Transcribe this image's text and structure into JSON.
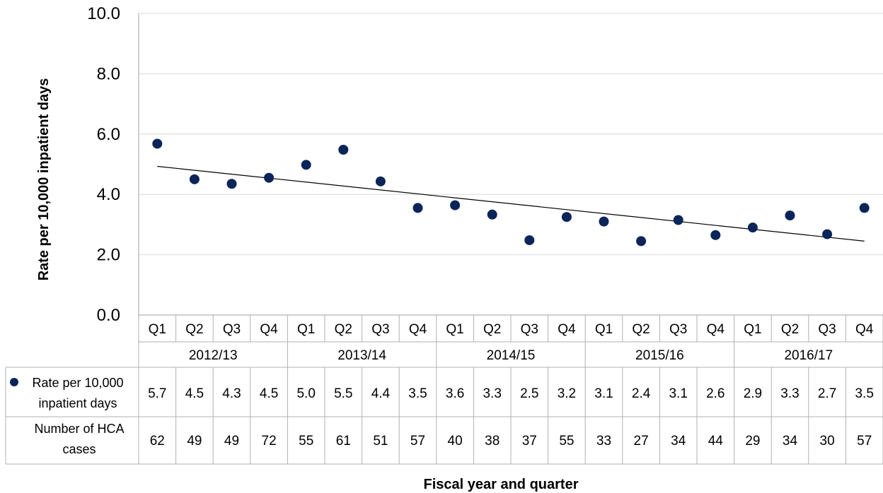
{
  "chart_data": {
    "type": "scatter",
    "ylabel": "Rate per 10,000 inpatient days",
    "xlabel": "Fiscal year and quarter",
    "ylim": [
      0,
      10
    ],
    "yticks": [
      "0.0",
      "2.0",
      "4.0",
      "6.0",
      "8.0",
      "10.0"
    ],
    "grid": true,
    "quarters": [
      "Q1",
      "Q2",
      "Q3",
      "Q4",
      "Q1",
      "Q2",
      "Q3",
      "Q4",
      "Q1",
      "Q2",
      "Q3",
      "Q4",
      "Q1",
      "Q2",
      "Q3",
      "Q4",
      "Q1",
      "Q2",
      "Q3",
      "Q4"
    ],
    "years": [
      "2012/13",
      "2013/14",
      "2014/15",
      "2015/16",
      "2016/17"
    ],
    "series": [
      {
        "name": "Rate per 10,000 inpatient days",
        "color": "#0b2559",
        "plot_values": [
          5.68,
          4.5,
          4.35,
          4.55,
          4.98,
          5.48,
          4.43,
          3.55,
          3.64,
          3.33,
          2.48,
          3.25,
          3.1,
          2.45,
          3.15,
          2.65,
          2.9,
          3.3,
          2.68,
          3.55
        ],
        "labels": [
          "5.7",
          "4.5",
          "4.3",
          "4.5",
          "5.0",
          "5.5",
          "4.4",
          "3.5",
          "3.6",
          "3.3",
          "2.5",
          "3.2",
          "3.1",
          "2.4",
          "3.1",
          "2.6",
          "2.9",
          "3.3",
          "2.7",
          "3.5"
        ]
      }
    ],
    "trendline": {
      "start": 4.93,
      "end": 2.45
    },
    "table": {
      "row1_label_lines": [
        "Rate per 10,000",
        "inpatient days"
      ],
      "row2_label_lines": [
        "Number of HCA",
        "cases"
      ],
      "cases": [
        "62",
        "49",
        "49",
        "72",
        "55",
        "61",
        "51",
        "57",
        "40",
        "38",
        "37",
        "55",
        "33",
        "27",
        "34",
        "44",
        "29",
        "34",
        "30",
        "57"
      ]
    }
  }
}
